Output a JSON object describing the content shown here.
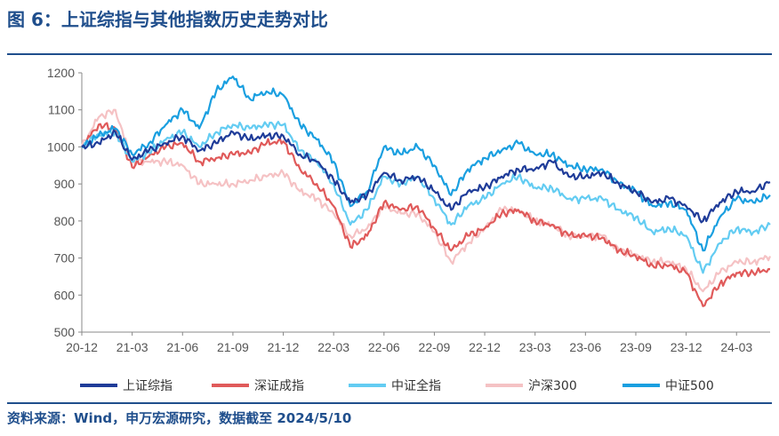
{
  "header": {
    "title": "图 6：上证综指与其他指数历史走势对比"
  },
  "footer": {
    "source": "资料来源：Wind，申万宏源研究，数据截至 2024/5/10"
  },
  "chart_data": {
    "type": "line",
    "title": "图 6：上证综指与其他指数历史走势对比",
    "xlabel": "",
    "ylabel": "",
    "ylim": [
      500,
      1200
    ],
    "yticks": [
      500,
      600,
      700,
      800,
      900,
      1000,
      1100,
      1200
    ],
    "xtick_labels": [
      "20-12",
      "21-03",
      "21-06",
      "21-09",
      "21-12",
      "22-03",
      "22-06",
      "22-09",
      "22-12",
      "23-03",
      "23-06",
      "23-09",
      "23-12",
      "24-03"
    ],
    "grid": false,
    "legend_position": "bottom",
    "x": [
      "20-12",
      "21-01",
      "21-02",
      "21-03",
      "21-04",
      "21-05",
      "21-06",
      "21-07",
      "21-08",
      "21-09",
      "21-10",
      "21-11",
      "21-12",
      "22-01",
      "22-02",
      "22-03",
      "22-04",
      "22-05",
      "22-06",
      "22-07",
      "22-08",
      "22-09",
      "22-10",
      "22-11",
      "22-12",
      "23-01",
      "23-02",
      "23-03",
      "23-04",
      "23-05",
      "23-06",
      "23-07",
      "23-08",
      "23-09",
      "23-10",
      "23-11",
      "23-12",
      "24-01",
      "24-02",
      "24-03",
      "24-04",
      "24-05"
    ],
    "series": [
      {
        "name": "上证综指",
        "color": "#1f3c99",
        "values": [
          1000,
          1010,
          1040,
          965,
          990,
          1010,
          1030,
          990,
          1010,
          1040,
          1020,
          1030,
          1030,
          980,
          960,
          910,
          850,
          870,
          930,
          910,
          920,
          880,
          830,
          880,
          890,
          920,
          940,
          940,
          960,
          920,
          920,
          930,
          900,
          880,
          850,
          860,
          840,
          800,
          850,
          880,
          880,
          905
        ]
      },
      {
        "name": "深证成指",
        "color": "#e05a5a",
        "values": [
          1000,
          1060,
          1050,
          945,
          975,
          1000,
          1010,
          960,
          970,
          980,
          985,
          1010,
          1015,
          940,
          900,
          840,
          730,
          760,
          850,
          830,
          840,
          780,
          720,
          760,
          780,
          820,
          830,
          800,
          790,
          760,
          760,
          755,
          720,
          705,
          680,
          680,
          660,
          570,
          630,
          660,
          660,
          670
        ]
      },
      {
        "name": "中证全指",
        "color": "#63ccf2",
        "values": [
          1000,
          1035,
          1040,
          960,
          985,
          1020,
          1040,
          1000,
          1040,
          1060,
          1050,
          1060,
          1060,
          990,
          960,
          900,
          790,
          830,
          920,
          900,
          920,
          860,
          790,
          840,
          860,
          900,
          920,
          890,
          890,
          860,
          860,
          860,
          830,
          810,
          770,
          780,
          760,
          660,
          740,
          780,
          770,
          790
        ]
      },
      {
        "name": "沪深300",
        "color": "#f5c2c4",
        "values": [
          1000,
          1080,
          1100,
          960,
          960,
          960,
          950,
          900,
          900,
          900,
          910,
          920,
          930,
          880,
          860,
          820,
          760,
          780,
          840,
          820,
          820,
          770,
          690,
          740,
          780,
          830,
          830,
          800,
          790,
          760,
          760,
          760,
          720,
          710,
          690,
          690,
          670,
          610,
          660,
          690,
          690,
          705
        ]
      },
      {
        "name": "中证500",
        "color": "#1a9fe0",
        "values": [
          1000,
          1030,
          1050,
          980,
          1010,
          1060,
          1100,
          1050,
          1150,
          1190,
          1130,
          1150,
          1140,
          1060,
          1020,
          960,
          840,
          880,
          1000,
          980,
          1000,
          950,
          870,
          940,
          970,
          990,
          1010,
          980,
          980,
          950,
          940,
          940,
          900,
          880,
          840,
          850,
          830,
          720,
          810,
          860,
          850,
          870
        ]
      }
    ]
  }
}
